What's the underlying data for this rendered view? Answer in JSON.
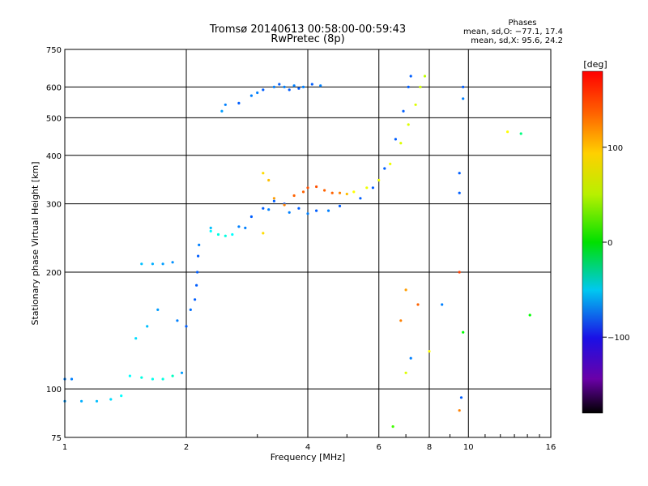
{
  "chart_data": {
    "type": "scatter",
    "title": "Tromsø 20140613 00:58:00-00:59:43",
    "subtitle": "RwPretec (8p)",
    "xlabel": "Frequency [MHz]",
    "ylabel": "Stationary phase Virtual Height [km]",
    "x_scale": "log",
    "y_scale": "log",
    "xlim": [
      1,
      16
    ],
    "ylim": [
      75,
      750
    ],
    "x_ticks": [
      1,
      2,
      4,
      6,
      8,
      10,
      16
    ],
    "y_ticks": [
      75,
      100,
      200,
      300,
      400,
      500,
      600,
      750
    ],
    "grid": true,
    "phases_legend": {
      "heading": "Phases",
      "line_o": "mean, sd,O: −77.1, 17.4",
      "line_x": "mean, sd,X:  95.6, 24.2"
    },
    "colorbar": {
      "label": "[deg]",
      "min": -180,
      "max": 180,
      "ticks": [
        100,
        0,
        -100
      ]
    },
    "series": [
      {
        "points": [
          [
            1.0,
            93,
            -90
          ],
          [
            1.1,
            93,
            -85
          ],
          [
            1.2,
            93,
            -80
          ],
          [
            1.3,
            94,
            -70
          ],
          [
            1.38,
            96,
            -60
          ],
          [
            1.0,
            106,
            -100
          ],
          [
            1.04,
            106,
            -100
          ],
          [
            1.45,
            108,
            -60
          ],
          [
            1.55,
            107,
            -50
          ],
          [
            1.65,
            106,
            -55
          ],
          [
            1.75,
            106,
            -50
          ],
          [
            1.85,
            108,
            -40
          ],
          [
            1.95,
            110,
            -90
          ],
          [
            1.5,
            135,
            -70
          ],
          [
            1.6,
            145,
            -80
          ],
          [
            1.7,
            160,
            -90
          ],
          [
            1.9,
            150,
            -100
          ],
          [
            2.0,
            145,
            -110
          ],
          [
            2.05,
            160,
            -105
          ],
          [
            2.1,
            170,
            -110
          ],
          [
            2.12,
            185,
            -110
          ],
          [
            2.13,
            200,
            -110
          ],
          [
            2.14,
            220,
            -110
          ],
          [
            2.15,
            235,
            -100
          ],
          [
            1.55,
            210,
            -80
          ],
          [
            1.65,
            210,
            -85
          ],
          [
            1.75,
            210,
            -90
          ],
          [
            1.85,
            212,
            -95
          ],
          [
            2.3,
            255,
            -60
          ],
          [
            2.4,
            250,
            -50
          ],
          [
            2.5,
            248,
            -50
          ],
          [
            2.6,
            250,
            -60
          ],
          [
            2.7,
            262,
            -100
          ],
          [
            2.9,
            278,
            -110
          ],
          [
            3.1,
            292,
            -110
          ],
          [
            3.3,
            305,
            -110
          ],
          [
            3.5,
            300,
            -110
          ],
          [
            3.8,
            292,
            -110
          ],
          [
            4.2,
            288,
            -110
          ],
          [
            4.8,
            296,
            -110
          ],
          [
            5.4,
            310,
            -110
          ],
          [
            5.8,
            330,
            -110
          ],
          [
            6.2,
            370,
            -110
          ],
          [
            6.6,
            440,
            -110
          ],
          [
            6.9,
            520,
            -110
          ],
          [
            7.1,
            600,
            -110
          ],
          [
            7.2,
            640,
            -110
          ],
          [
            2.8,
            260,
            -100
          ],
          [
            3.2,
            290,
            -100
          ],
          [
            3.6,
            285,
            -100
          ],
          [
            4.0,
            283,
            -100
          ],
          [
            4.5,
            288,
            -100
          ],
          [
            3.3,
            600,
            -100
          ],
          [
            3.4,
            610,
            -110
          ],
          [
            3.5,
            600,
            -100
          ],
          [
            3.6,
            590,
            -110
          ],
          [
            3.7,
            605,
            -100
          ],
          [
            3.8,
            595,
            -110
          ],
          [
            3.0,
            580,
            -100
          ],
          [
            3.1,
            590,
            -110
          ],
          [
            2.9,
            570,
            -100
          ],
          [
            2.7,
            545,
            -110
          ],
          [
            2.5,
            540,
            -100
          ],
          [
            2.45,
            520,
            -90
          ],
          [
            3.9,
            600,
            -100
          ],
          [
            4.1,
            610,
            -110
          ],
          [
            4.3,
            605,
            -100
          ],
          [
            3.3,
            310,
            130
          ],
          [
            3.5,
            298,
            140
          ],
          [
            3.7,
            315,
            150
          ],
          [
            3.9,
            322,
            150
          ],
          [
            4.0,
            330,
            155
          ],
          [
            4.2,
            332,
            155
          ],
          [
            4.4,
            325,
            150
          ],
          [
            4.6,
            320,
            150
          ],
          [
            4.8,
            320,
            140
          ],
          [
            5.0,
            318,
            120
          ],
          [
            5.2,
            322,
            100
          ],
          [
            5.6,
            330,
            95
          ],
          [
            6.0,
            345,
            95
          ],
          [
            6.4,
            380,
            95
          ],
          [
            6.8,
            430,
            90
          ],
          [
            7.1,
            480,
            90
          ],
          [
            7.4,
            540,
            90
          ],
          [
            7.6,
            600,
            85
          ],
          [
            7.8,
            640,
            80
          ],
          [
            3.1,
            360,
            110
          ],
          [
            3.2,
            345,
            120
          ],
          [
            3.1,
            252,
            110
          ],
          [
            2.3,
            260,
            -80
          ],
          [
            7.2,
            120,
            -100
          ],
          [
            6.8,
            150,
            140
          ],
          [
            7.0,
            180,
            130
          ],
          [
            7.5,
            165,
            150
          ],
          [
            9.5,
            320,
            -110
          ],
          [
            9.5,
            360,
            -110
          ],
          [
            9.7,
            560,
            -100
          ],
          [
            9.7,
            600,
            -110
          ],
          [
            9.5,
            200,
            160
          ],
          [
            9.7,
            140,
            20
          ],
          [
            9.6,
            95,
            -110
          ],
          [
            9.5,
            88,
            140
          ],
          [
            12.5,
            460,
            100
          ],
          [
            13.5,
            455,
            -20
          ],
          [
            14.2,
            155,
            20
          ],
          [
            6.5,
            80,
            40
          ],
          [
            7.0,
            110,
            90
          ],
          [
            8.6,
            165,
            -100
          ],
          [
            8.0,
            125,
            100
          ]
        ]
      }
    ]
  }
}
